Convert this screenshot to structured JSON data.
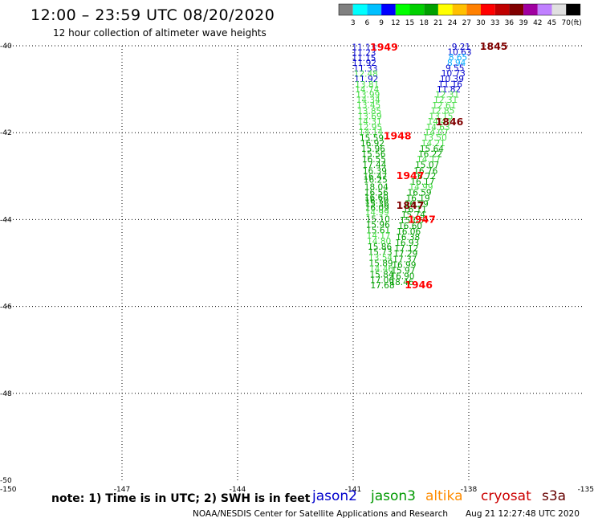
{
  "title": "12:00 – 23:59 UTC 08/20/2020",
  "subtitle": "12 hour collection of altimeter wave heights",
  "colorbar": {
    "unit": "(ft)",
    "swatches": [
      "#808080",
      "#00ffff",
      "#00c0ff",
      "#0000ff",
      "#00ff00",
      "#00d000",
      "#00a000",
      "#ffff00",
      "#ffc000",
      "#ff8000",
      "#ff0000",
      "#c00000",
      "#800000",
      "#a000a0",
      "#c080ff",
      "#e0e0e0",
      "#000000"
    ],
    "ticks": [
      "3",
      "6",
      "9",
      "12",
      "15",
      "18",
      "21",
      "24",
      "27",
      "30",
      "33",
      "36",
      "39",
      "42",
      "45",
      "70"
    ]
  },
  "axes": {
    "lat_labels": [
      "-40",
      "-42",
      "-44",
      "-46",
      "-48",
      "-50"
    ],
    "lon_labels": [
      "-150",
      "-147",
      "-144",
      "-141",
      "-138",
      "-135"
    ]
  },
  "note": "note: 1) Time is in UTC; 2) SWH is in feet",
  "satellites": [
    {
      "name": "jason2",
      "color": "#0000cc"
    },
    {
      "name": "jason3",
      "color": "#009900"
    },
    {
      "name": "altika",
      "color": "#ff8c00"
    },
    {
      "name": "cryosat",
      "color": "#cc0000"
    },
    {
      "name": "s3a",
      "color": "#660000"
    }
  ],
  "credit": "NOAA/NESDIS Center for Satellite Applications and Research",
  "timestamp": "Aug 21 12:27:48 UTC 2020",
  "chart_data": {
    "type": "scatter",
    "title": "12:00 – 23:59 UTC 08/20/2020",
    "subtitle": "12 hour collection of altimeter wave heights",
    "xlim": [
      -150,
      -135
    ],
    "ylim": [
      -50,
      -40
    ],
    "grid": true,
    "swh_points": [
      {
        "lon": -140.72,
        "lat": -40.03,
        "swh": "11.13",
        "color": "#0000cc"
      },
      {
        "lon": -140.72,
        "lat": -40.16,
        "swh": "11.23",
        "color": "#0000cc"
      },
      {
        "lon": -140.72,
        "lat": -40.28,
        "swh": "11.15",
        "color": "#0000cc"
      },
      {
        "lon": -140.71,
        "lat": -40.39,
        "swh": "11.92",
        "color": "#0000cc"
      },
      {
        "lon": -140.68,
        "lat": -40.52,
        "swh": "11.33",
        "color": "#0000cc"
      },
      {
        "lon": -140.67,
        "lat": -40.64,
        "swh": "12.48",
        "color": "#44dd44"
      },
      {
        "lon": -140.66,
        "lat": -40.76,
        "swh": "11.92",
        "color": "#0000cc"
      },
      {
        "lon": -140.64,
        "lat": -40.89,
        "swh": "13.81",
        "color": "#44dd44"
      },
      {
        "lon": -140.64,
        "lat": -41.0,
        "swh": "14.74",
        "color": "#44dd44"
      },
      {
        "lon": -140.62,
        "lat": -41.12,
        "swh": "13.99",
        "color": "#44dd44"
      },
      {
        "lon": -140.61,
        "lat": -41.24,
        "swh": "14.34",
        "color": "#44dd44"
      },
      {
        "lon": -140.6,
        "lat": -41.36,
        "swh": "13.45",
        "color": "#44dd44"
      },
      {
        "lon": -140.58,
        "lat": -41.5,
        "swh": "13.85",
        "color": "#44dd44"
      },
      {
        "lon": -140.57,
        "lat": -41.62,
        "swh": "13.69",
        "color": "#44dd44"
      },
      {
        "lon": -140.57,
        "lat": -41.74,
        "swh": "14.31",
        "color": "#44dd44"
      },
      {
        "lon": -140.56,
        "lat": -41.87,
        "swh": "12.95",
        "color": "#44dd44"
      },
      {
        "lon": -140.54,
        "lat": -41.98,
        "swh": "14.14",
        "color": "#44dd44"
      },
      {
        "lon": -140.52,
        "lat": -42.12,
        "swh": "15.59",
        "color": "#00a000"
      },
      {
        "lon": -140.5,
        "lat": -42.24,
        "swh": "16.92",
        "color": "#00a000"
      },
      {
        "lon": -140.48,
        "lat": -42.37,
        "swh": "15.96",
        "color": "#00a000"
      },
      {
        "lon": -140.47,
        "lat": -42.49,
        "swh": "15.56",
        "color": "#00a000"
      },
      {
        "lon": -140.46,
        "lat": -42.61,
        "swh": "16.55",
        "color": "#00a000"
      },
      {
        "lon": -140.45,
        "lat": -42.74,
        "swh": "17.44",
        "color": "#00a000"
      },
      {
        "lon": -140.44,
        "lat": -42.87,
        "swh": "16.39",
        "color": "#00a000"
      },
      {
        "lon": -140.43,
        "lat": -43.0,
        "swh": "16.47",
        "color": "#00a000"
      },
      {
        "lon": -140.42,
        "lat": -43.08,
        "swh": "16.25",
        "color": "#00a000"
      },
      {
        "lon": -140.4,
        "lat": -43.24,
        "swh": "18.04",
        "color": "#00a000"
      },
      {
        "lon": -140.4,
        "lat": -43.37,
        "swh": "16.56",
        "color": "#00a000"
      },
      {
        "lon": -140.4,
        "lat": -43.48,
        "swh": "16.60",
        "color": "#00a000"
      },
      {
        "lon": -140.39,
        "lat": -43.56,
        "swh": "16.70",
        "color": "#00a000"
      },
      {
        "lon": -140.38,
        "lat": -43.63,
        "swh": "15.36",
        "color": "#00a000"
      },
      {
        "lon": -140.38,
        "lat": -43.72,
        "swh": "16.09",
        "color": "#00a000"
      },
      {
        "lon": -140.38,
        "lat": -43.83,
        "swh": "14.99",
        "color": "#44dd44"
      },
      {
        "lon": -140.36,
        "lat": -43.98,
        "swh": "15.10",
        "color": "#00a000"
      },
      {
        "lon": -140.36,
        "lat": -44.11,
        "swh": "15.96",
        "color": "#00a000"
      },
      {
        "lon": -140.35,
        "lat": -44.24,
        "swh": "15.61",
        "color": "#00a000"
      },
      {
        "lon": -140.34,
        "lat": -44.36,
        "swh": "14.17",
        "color": "#44dd44"
      },
      {
        "lon": -140.33,
        "lat": -44.49,
        "swh": "14.80",
        "color": "#44dd44"
      },
      {
        "lon": -140.31,
        "lat": -44.62,
        "swh": "15.86",
        "color": "#00a000"
      },
      {
        "lon": -140.3,
        "lat": -44.74,
        "swh": "15.73",
        "color": "#00a000"
      },
      {
        "lon": -140.29,
        "lat": -44.87,
        "swh": "13.54",
        "color": "#44dd44"
      },
      {
        "lon": -140.28,
        "lat": -45.0,
        "swh": "15.89",
        "color": "#00a000"
      },
      {
        "lon": -140.27,
        "lat": -45.13,
        "swh": "14.46",
        "color": "#44dd44"
      },
      {
        "lon": -140.26,
        "lat": -45.26,
        "swh": "15.84",
        "color": "#00a000"
      },
      {
        "lon": -140.25,
        "lat": -45.39,
        "swh": "17.06",
        "color": "#00a000"
      },
      {
        "lon": -140.24,
        "lat": -45.51,
        "swh": "17.68",
        "color": "#00a000"
      },
      {
        "lon": -138.2,
        "lat": -40.02,
        "swh": "9.21",
        "color": "#0000cc"
      },
      {
        "lon": -138.24,
        "lat": -40.14,
        "swh": "10.63",
        "color": "#0000cc"
      },
      {
        "lon": -138.28,
        "lat": -40.26,
        "swh": "8.65",
        "color": "#00aaff"
      },
      {
        "lon": -138.32,
        "lat": -40.39,
        "swh": "8.94",
        "color": "#00aaff"
      },
      {
        "lon": -138.36,
        "lat": -40.51,
        "swh": "9.55",
        "color": "#0000cc"
      },
      {
        "lon": -138.4,
        "lat": -40.63,
        "swh": "10.73",
        "color": "#0000cc"
      },
      {
        "lon": -138.44,
        "lat": -40.76,
        "swh": "10.39",
        "color": "#0000cc"
      },
      {
        "lon": -138.48,
        "lat": -40.88,
        "swh": "11.16",
        "color": "#0000cc"
      },
      {
        "lon": -138.52,
        "lat": -41.0,
        "swh": "11.82",
        "color": "#0000cc"
      },
      {
        "lon": -138.56,
        "lat": -41.12,
        "swh": "12.31",
        "color": "#44dd44"
      },
      {
        "lon": -138.6,
        "lat": -41.24,
        "swh": "12.31",
        "color": "#44dd44"
      },
      {
        "lon": -138.64,
        "lat": -41.37,
        "swh": "12.61",
        "color": "#44dd44"
      },
      {
        "lon": -138.68,
        "lat": -41.49,
        "swh": "12.85",
        "color": "#44dd44"
      },
      {
        "lon": -138.72,
        "lat": -41.62,
        "swh": "13.15",
        "color": "#44dd44"
      },
      {
        "lon": -138.76,
        "lat": -41.74,
        "swh": "14.42",
        "color": "#44dd44"
      },
      {
        "lon": -138.8,
        "lat": -41.87,
        "swh": "14.63",
        "color": "#44dd44"
      },
      {
        "lon": -138.84,
        "lat": -41.99,
        "swh": "14.07",
        "color": "#44dd44"
      },
      {
        "lon": -138.88,
        "lat": -42.11,
        "swh": "13.50",
        "color": "#44dd44"
      },
      {
        "lon": -138.92,
        "lat": -42.24,
        "swh": "14.21",
        "color": "#44dd44"
      },
      {
        "lon": -138.96,
        "lat": -42.37,
        "swh": "15.64",
        "color": "#00a000"
      },
      {
        "lon": -139.0,
        "lat": -42.49,
        "swh": "16.22",
        "color": "#00a000"
      },
      {
        "lon": -139.04,
        "lat": -42.61,
        "swh": "14.17",
        "color": "#44dd44"
      },
      {
        "lon": -139.08,
        "lat": -42.74,
        "swh": "15.07",
        "color": "#00a000"
      },
      {
        "lon": -139.12,
        "lat": -42.87,
        "swh": "16.76",
        "color": "#00a000"
      },
      {
        "lon": -139.16,
        "lat": -42.99,
        "swh": "16.72",
        "color": "#00a000"
      },
      {
        "lon": -139.2,
        "lat": -43.12,
        "swh": "16.17",
        "color": "#00a000"
      },
      {
        "lon": -139.24,
        "lat": -43.24,
        "swh": "14.99",
        "color": "#44dd44"
      },
      {
        "lon": -139.28,
        "lat": -43.37,
        "swh": "16.59",
        "color": "#00a000"
      },
      {
        "lon": -139.32,
        "lat": -43.5,
        "swh": "16.19",
        "color": "#00a000"
      },
      {
        "lon": -139.36,
        "lat": -43.63,
        "swh": "16.59",
        "color": "#00a000"
      },
      {
        "lon": -139.4,
        "lat": -43.76,
        "swh": "16.11",
        "color": "#00a000"
      },
      {
        "lon": -139.44,
        "lat": -43.88,
        "swh": "15.74",
        "color": "#00a000"
      },
      {
        "lon": -139.48,
        "lat": -44.01,
        "swh": "15.05",
        "color": "#00a000"
      },
      {
        "lon": -139.52,
        "lat": -44.14,
        "swh": "16.60",
        "color": "#00a000"
      },
      {
        "lon": -139.56,
        "lat": -44.27,
        "swh": "16.06",
        "color": "#00a000"
      },
      {
        "lon": -139.58,
        "lat": -44.4,
        "swh": "16.38",
        "color": "#00a000"
      },
      {
        "lon": -139.6,
        "lat": -44.53,
        "swh": "16.93",
        "color": "#00a000"
      },
      {
        "lon": -139.62,
        "lat": -44.66,
        "swh": "17.12",
        "color": "#00a000"
      },
      {
        "lon": -139.64,
        "lat": -44.78,
        "swh": "17.29",
        "color": "#00a000"
      },
      {
        "lon": -139.66,
        "lat": -44.91,
        "swh": "17.37",
        "color": "#00a000"
      },
      {
        "lon": -139.68,
        "lat": -45.04,
        "swh": "16.99",
        "color": "#00a000"
      },
      {
        "lon": -139.7,
        "lat": -45.17,
        "swh": "15.97",
        "color": "#00a000"
      },
      {
        "lon": -139.72,
        "lat": -45.3,
        "swh": "16.90",
        "color": "#00a000"
      },
      {
        "lon": -139.74,
        "lat": -45.43,
        "swh": "18.46",
        "color": "#00a000"
      }
    ],
    "time_labels": [
      {
        "lon": -140.2,
        "lat": -40.02,
        "label": "1949",
        "color": "#ff0000"
      },
      {
        "lon": -137.35,
        "lat": -40.0,
        "label": "1845",
        "color": "#800000"
      },
      {
        "lon": -138.5,
        "lat": -41.74,
        "label": "1846",
        "color": "#800000"
      },
      {
        "lon": -139.85,
        "lat": -42.06,
        "label": "1948",
        "color": "#ff0000"
      },
      {
        "lon": -139.52,
        "lat": -42.98,
        "label": "1947",
        "color": "#ff0000"
      },
      {
        "lon": -139.52,
        "lat": -43.66,
        "label": "1847",
        "color": "#800000"
      },
      {
        "lon": -139.22,
        "lat": -43.98,
        "label": "1947",
        "color": "#ff0000"
      },
      {
        "lon": -139.3,
        "lat": -45.49,
        "label": "1946",
        "color": "#ff0000"
      }
    ]
  }
}
